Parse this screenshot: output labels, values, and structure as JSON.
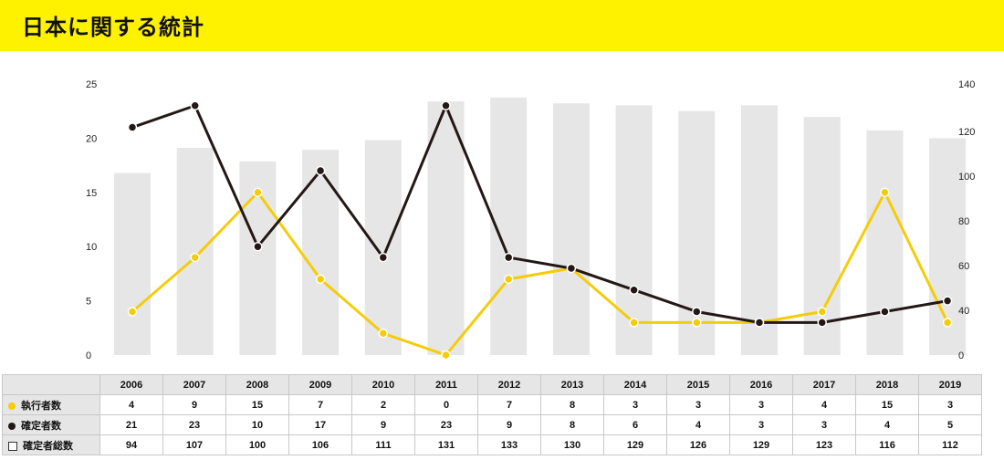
{
  "title": "日本に関する統計",
  "chart_data": {
    "type": "bar+line",
    "categories": [
      "2006",
      "2007",
      "2008",
      "2009",
      "2010",
      "2011",
      "2012",
      "2013",
      "2014",
      "2015",
      "2016",
      "2017",
      "2018",
      "2019"
    ],
    "series": [
      {
        "name": "執行者数",
        "kind": "line",
        "axis": "left",
        "color": "#f5cc0a",
        "values": [
          4,
          9,
          15,
          7,
          2,
          0,
          7,
          8,
          3,
          3,
          3,
          4,
          15,
          3
        ]
      },
      {
        "name": "確定者数",
        "kind": "line",
        "axis": "left",
        "color": "#231815",
        "values": [
          21,
          23,
          10,
          17,
          9,
          23,
          9,
          8,
          6,
          4,
          3,
          3,
          4,
          5
        ]
      },
      {
        "name": "確定者総数",
        "kind": "bar",
        "axis": "right",
        "color": "#e6e6e6",
        "values": [
          94,
          107,
          100,
          106,
          111,
          131,
          133,
          130,
          129,
          126,
          129,
          123,
          116,
          112
        ]
      }
    ],
    "yleft": {
      "ticks": [
        "0",
        "5",
        "10",
        "15",
        "20",
        "25"
      ],
      "min": 0,
      "max": 25
    },
    "yright": {
      "ticks": [
        "0",
        "40",
        "60",
        "80",
        "100",
        "120",
        "140"
      ],
      "min": 0,
      "max": 140
    }
  }
}
